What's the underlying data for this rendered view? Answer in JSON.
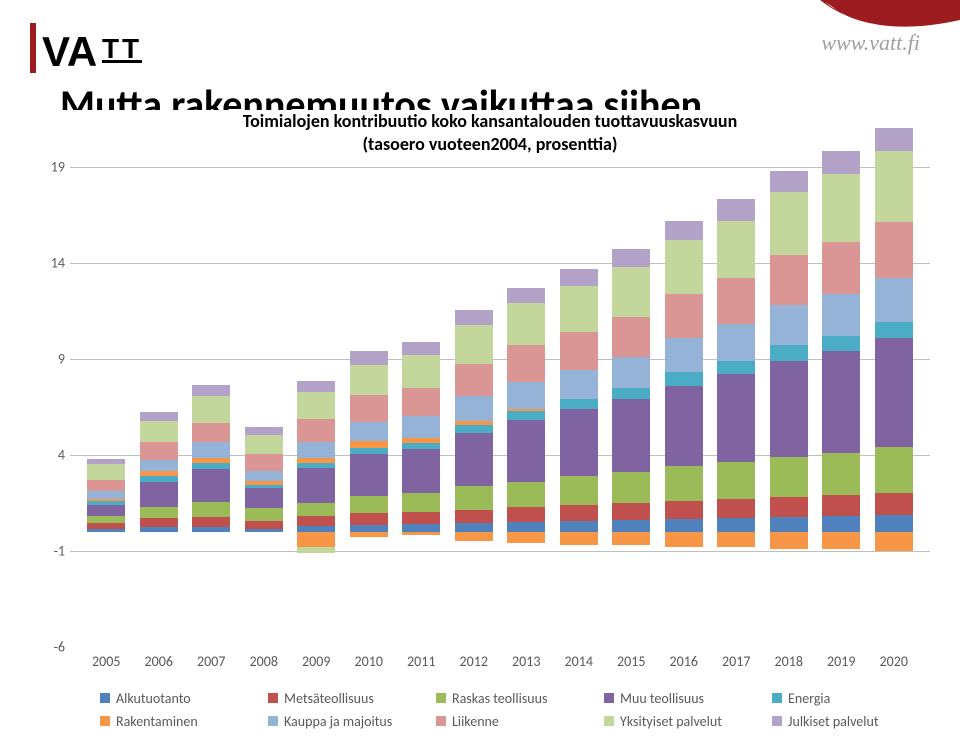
{
  "header": {
    "url": "www.vatt.fi",
    "logo_red": "#9b1b1f",
    "logo_text": "VA"
  },
  "title_main": "Mutta rakennemuutos vaikuttaa siihen",
  "chart": {
    "subtitle_line1": "Toimialojen kontribuutio koko kansantalouden tuottavuuskasvuun",
    "subtitle_line2": "(tasoero vuoteen2004, prosenttia)",
    "type": "stacked-bar",
    "ylim": [
      -6,
      19
    ],
    "yticks": [
      -6,
      -1,
      4,
      9,
      14,
      19
    ],
    "yticks_with_gridlines": [
      -1,
      4,
      9,
      14,
      19
    ],
    "categories": [
      "2005",
      "2006",
      "2007",
      "2008",
      "2009",
      "2010",
      "2011",
      "2012",
      "2013",
      "2014",
      "2015",
      "2016",
      "2017",
      "2018",
      "2019",
      "2020"
    ],
    "series": [
      {
        "name": "Alkutuotanto",
        "color": "#4f81bd"
      },
      {
        "name": "Metsäteollisuus",
        "color": "#c0504d"
      },
      {
        "name": "Raskas teollisuus",
        "color": "#9bbb59"
      },
      {
        "name": "Muu teollisuus",
        "color": "#8064a2"
      },
      {
        "name": "Energia",
        "color": "#4bacc6"
      },
      {
        "name": "Rakentaminen",
        "color": "#f79646"
      },
      {
        "name": "Kauppa ja majoitus",
        "color": "#95b3d7"
      },
      {
        "name": "Liikenne",
        "color": "#d99694"
      },
      {
        "name": "Yksityiset palvelut",
        "color": "#c3d69b"
      },
      {
        "name": "Julkiset palvelut",
        "color": "#b3a2c7"
      }
    ],
    "data": [
      [
        0.15,
        0.3,
        0.35,
        0.6,
        0.2,
        0.1,
        0.4,
        0.6,
        0.8,
        0.3
      ],
      [
        0.25,
        0.45,
        0.6,
        1.3,
        0.3,
        0.25,
        0.6,
        0.9,
        1.1,
        0.5
      ],
      [
        0.25,
        0.5,
        0.8,
        1.7,
        0.3,
        0.3,
        0.8,
        1.0,
        1.4,
        0.6
      ],
      [
        0.15,
        0.4,
        0.7,
        1.0,
        0.2,
        0.2,
        0.5,
        0.9,
        1.0,
        0.4
      ],
      [
        0.3,
        0.5,
        0.7,
        1.8,
        0.25,
        0.3,
        0.8,
        1.2,
        1.4,
        0.6
      ],
      [
        0.35,
        0.6,
        0.9,
        2.2,
        0.3,
        0.35,
        1.0,
        1.4,
        1.6,
        0.7
      ],
      [
        0.4,
        0.6,
        1.0,
        2.3,
        0.3,
        0.3,
        1.1,
        1.5,
        1.7,
        0.7
      ],
      [
        0.45,
        0.7,
        1.2,
        2.8,
        0.4,
        0.2,
        1.3,
        1.7,
        2.0,
        0.8
      ],
      [
        0.5,
        0.8,
        1.3,
        3.2,
        0.5,
        0.1,
        1.4,
        1.9,
        2.2,
        0.8
      ],
      [
        0.55,
        0.85,
        1.5,
        3.5,
        0.5,
        0.0,
        1.5,
        2.0,
        2.4,
        0.9
      ],
      [
        0.6,
        0.9,
        1.6,
        3.8,
        0.6,
        0.0,
        1.6,
        2.1,
        2.6,
        0.9
      ],
      [
        0.65,
        0.95,
        1.8,
        4.2,
        0.7,
        0.0,
        1.8,
        2.3,
        2.8,
        1.0
      ],
      [
        0.7,
        1.0,
        1.9,
        4.6,
        0.7,
        0.0,
        1.9,
        2.4,
        3.0,
        1.1
      ],
      [
        0.75,
        1.05,
        2.1,
        5.0,
        0.8,
        0.0,
        2.1,
        2.6,
        3.3,
        1.1
      ],
      [
        0.8,
        1.1,
        2.2,
        5.3,
        0.8,
        0.0,
        2.2,
        2.7,
        3.5,
        1.2
      ],
      [
        0.85,
        1.15,
        2.4,
        5.7,
        0.8,
        0.0,
        2.3,
        2.9,
        3.7,
        1.2
      ]
    ],
    "negatives": [
      [],
      [],
      [],
      [],
      [
        [
          5,
          -0.8
        ],
        [
          8,
          -0.3
        ]
      ],
      [
        [
          5,
          -0.3
        ]
      ],
      [
        [
          5,
          -0.2
        ]
      ],
      [
        [
          5,
          -0.5
        ]
      ],
      [
        [
          5,
          -0.6
        ]
      ],
      [
        [
          5,
          -0.7
        ]
      ],
      [
        [
          5,
          -0.7
        ]
      ],
      [
        [
          5,
          -0.8
        ]
      ],
      [
        [
          5,
          -0.8
        ]
      ],
      [
        [
          5,
          -0.9
        ]
      ],
      [
        [
          5,
          -0.9
        ]
      ],
      [
        [
          5,
          -1.0
        ]
      ]
    ],
    "label_fontsize": 14,
    "background_color": "#ffffff",
    "grid_color": "#bfbfbf"
  }
}
